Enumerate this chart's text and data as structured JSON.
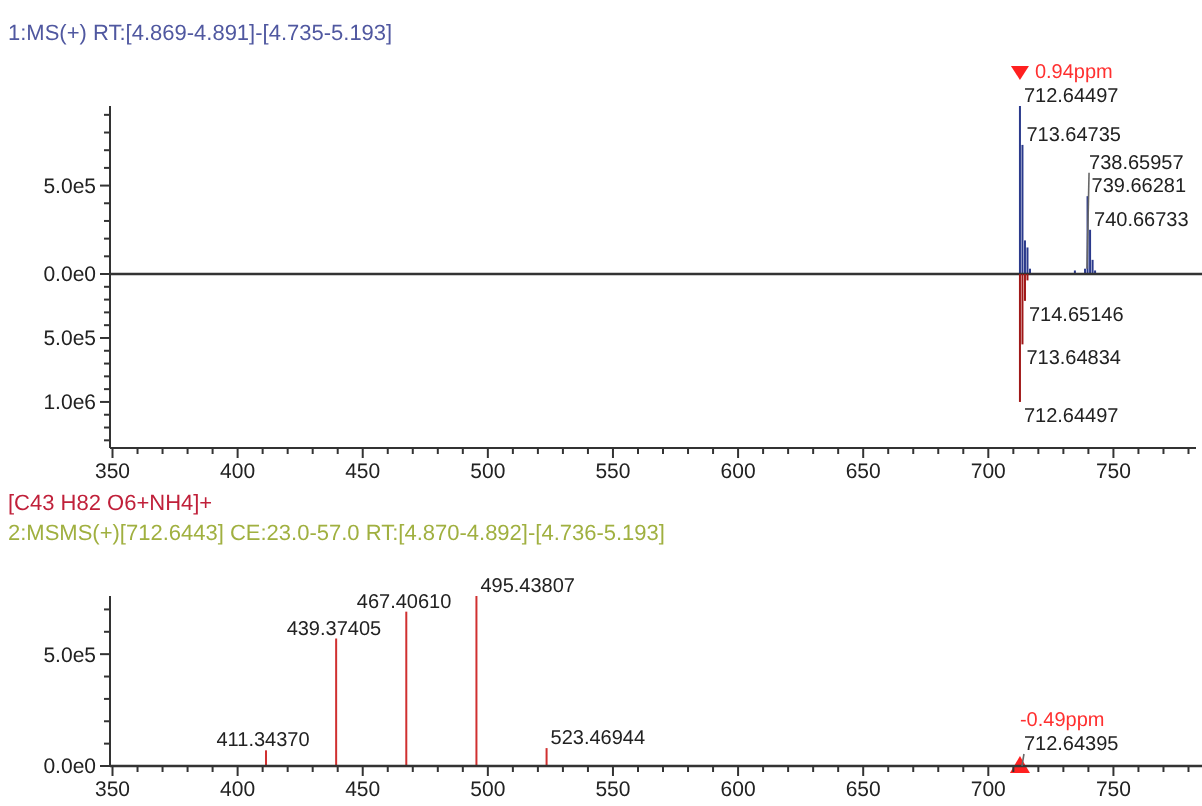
{
  "chart_data": [
    {
      "type": "bar",
      "title": "1:MS(+) RT:[4.869-4.891]-[4.735-5.193]",
      "xlim": [
        349,
        783
      ],
      "ylim": [
        0,
        950000
      ],
      "tick_labels": "y",
      "yticks": [
        {
          "value": 0,
          "label": "0.0e0"
        },
        {
          "value": 100000,
          "label": null
        },
        {
          "value": 200000,
          "label": null
        },
        {
          "value": 300000,
          "label": null
        },
        {
          "value": 400000,
          "label": null
        },
        {
          "value": 500000,
          "label": "5.0e5"
        },
        {
          "value": 600000,
          "label": null
        },
        {
          "value": 700000,
          "label": null
        },
        {
          "value": 800000,
          "label": null
        },
        {
          "value": 900000,
          "label": null
        }
      ],
      "series": [
        {
          "color": "#2b3a8c",
          "x": [
            712.64497,
            713.64735,
            714.65,
            715.653,
            716.66,
            734.6,
            738.65957,
            739.66281,
            740.66733,
            741.67,
            742.67
          ],
          "values": [
            950000,
            730000,
            190000,
            150000,
            30000,
            20000,
            30000,
            440000,
            250000,
            80000,
            20000
          ]
        }
      ],
      "annotations": [
        {
          "text": "0.94ppm",
          "x": 712.64497,
          "y": 950000
        },
        {
          "text": "712.64497",
          "x": 712.64497,
          "y": 950000
        },
        {
          "text": "713.64735",
          "x": 713.64735,
          "y": 730000
        },
        {
          "text": "738.65957",
          "x": 738.65957,
          "y": 30000
        },
        {
          "text": "739.66281",
          "x": 739.66281,
          "y": 440000
        },
        {
          "text": "740.66733",
          "x": 740.66733,
          "y": 250000
        }
      ]
    },
    {
      "type": "bar",
      "xlim": [
        349,
        783
      ],
      "ylim": [
        1360000,
        0
      ],
      "xticks": [
        350,
        {
          "value": 360,
          "label": null
        },
        {
          "value": 370,
          "label": null
        },
        {
          "value": 380,
          "label": null
        },
        {
          "value": 390,
          "label": null
        },
        400,
        {
          "value": 410,
          "label": null
        },
        {
          "value": 420,
          "label": null
        },
        {
          "value": 430,
          "label": null
        },
        {
          "value": 440,
          "label": null
        },
        450,
        {
          "value": 460,
          "label": null
        },
        {
          "value": 470,
          "label": null
        },
        {
          "value": 480,
          "label": null
        },
        {
          "value": 490,
          "label": null
        },
        500,
        {
          "value": 510,
          "label": null
        },
        {
          "value": 520,
          "label": null
        },
        {
          "value": 530,
          "label": null
        },
        {
          "value": 540,
          "label": null
        },
        550,
        {
          "value": 560,
          "label": null
        },
        {
          "value": 570,
          "label": null
        },
        {
          "value": 580,
          "label": null
        },
        {
          "value": 590,
          "label": null
        },
        600,
        {
          "value": 610,
          "label": null
        },
        {
          "value": 620,
          "label": null
        },
        {
          "value": 630,
          "label": null
        },
        {
          "value": 640,
          "label": null
        },
        650,
        {
          "value": 660,
          "label": null
        },
        {
          "value": 670,
          "label": null
        },
        {
          "value": 680,
          "label": null
        },
        {
          "value": 690,
          "label": null
        },
        700,
        {
          "value": 710,
          "label": null
        },
        {
          "value": 720,
          "label": null
        },
        {
          "value": 730,
          "label": null
        },
        {
          "value": 740,
          "label": null
        },
        750,
        {
          "value": 760,
          "label": null
        },
        {
          "value": 770,
          "label": null
        },
        {
          "value": 780,
          "label": null
        }
      ],
      "yticks": [
        {
          "value": 100000,
          "label": null
        },
        {
          "value": 200000,
          "label": null
        },
        {
          "value": 300000,
          "label": null
        },
        {
          "value": 400000,
          "label": null
        },
        {
          "value": 500000,
          "label": "5.0e5"
        },
        {
          "value": 600000,
          "label": null
        },
        {
          "value": 700000,
          "label": null
        },
        {
          "value": 800000,
          "label": null
        },
        {
          "value": 900000,
          "label": null
        },
        {
          "value": 1000000,
          "label": "1.0e6"
        },
        {
          "value": 1100000,
          "label": null
        },
        {
          "value": 1200000,
          "label": null
        },
        {
          "value": 1300000,
          "label": null
        }
      ],
      "series": [
        {
          "color": "#a01818",
          "x": [
            712.64497,
            713.64834,
            714.65146,
            715.654
          ],
          "values": [
            1000000,
            550000,
            210000,
            50000
          ]
        }
      ],
      "annotations": [
        {
          "text": "714.65146",
          "x": 714.65146,
          "y": 210000
        },
        {
          "text": "713.64834",
          "x": 713.64834,
          "y": 550000
        },
        {
          "text": "712.64497",
          "x": 712.64497,
          "y": 1000000
        }
      ]
    },
    {
      "type": "bar",
      "title": "[C43 H82 O6+NH4]+",
      "subtitle": "2:MSMS(+)[712.6443]  CE:23.0-57.0  RT:[4.870-4.892]-[4.736-5.193]",
      "xlim": [
        349,
        783
      ],
      "ylim": [
        0,
        760000
      ],
      "xticks": [
        350,
        {
          "value": 360,
          "label": null
        },
        {
          "value": 370,
          "label": null
        },
        {
          "value": 380,
          "label": null
        },
        {
          "value": 390,
          "label": null
        },
        400,
        {
          "value": 410,
          "label": null
        },
        {
          "value": 420,
          "label": null
        },
        {
          "value": 430,
          "label": null
        },
        {
          "value": 440,
          "label": null
        },
        450,
        {
          "value": 460,
          "label": null
        },
        {
          "value": 470,
          "label": null
        },
        {
          "value": 480,
          "label": null
        },
        {
          "value": 490,
          "label": null
        },
        500,
        {
          "value": 510,
          "label": null
        },
        {
          "value": 520,
          "label": null
        },
        {
          "value": 530,
          "label": null
        },
        {
          "value": 540,
          "label": null
        },
        550,
        {
          "value": 560,
          "label": null
        },
        {
          "value": 570,
          "label": null
        },
        {
          "value": 580,
          "label": null
        },
        {
          "value": 590,
          "label": null
        },
        600,
        {
          "value": 610,
          "label": null
        },
        {
          "value": 620,
          "label": null
        },
        {
          "value": 630,
          "label": null
        },
        {
          "value": 640,
          "label": null
        },
        650,
        {
          "value": 660,
          "label": null
        },
        {
          "value": 670,
          "label": null
        },
        {
          "value": 680,
          "label": null
        },
        {
          "value": 690,
          "label": null
        },
        700,
        {
          "value": 710,
          "label": null
        },
        {
          "value": 720,
          "label": null
        },
        {
          "value": 730,
          "label": null
        },
        {
          "value": 740,
          "label": null
        },
        750,
        {
          "value": 760,
          "label": null
        },
        {
          "value": 770,
          "label": null
        },
        {
          "value": 780,
          "label": null
        }
      ],
      "yticks": [
        {
          "value": 0,
          "label": "0.0e0"
        },
        {
          "value": 100000,
          "label": null
        },
        {
          "value": 200000,
          "label": null
        },
        {
          "value": 300000,
          "label": null
        },
        {
          "value": 400000,
          "label": null
        },
        {
          "value": 500000,
          "label": "5.0e5"
        },
        {
          "value": 600000,
          "label": null
        },
        {
          "value": 700000,
          "label": null
        }
      ],
      "series": [
        {
          "color": "#d03030",
          "x": [
            411.3437,
            439.37405,
            467.4061,
            495.43807,
            523.46944
          ],
          "values": [
            70000,
            570000,
            690000,
            760000,
            80000
          ]
        },
        {
          "type": "scatter",
          "marker": "triangle",
          "color": "#ff2020",
          "x": [
            712.64395
          ],
          "values": [
            0
          ]
        }
      ],
      "annotations": [
        {
          "text": "-0.49ppm",
          "x": 712.64395,
          "y": 0
        },
        {
          "text": "411.34370",
          "x": 411.3437,
          "y": 70000
        },
        {
          "text": "439.37405",
          "x": 439.37405,
          "y": 570000
        },
        {
          "text": "467.40610",
          "x": 467.4061,
          "y": 690000
        },
        {
          "text": "495.43807",
          "x": 495.43807,
          "y": 760000
        },
        {
          "text": "523.46944",
          "x": 523.46944,
          "y": 80000
        },
        {
          "text": "712.64395",
          "x": 712.64395,
          "y": 0
        }
      ]
    }
  ]
}
